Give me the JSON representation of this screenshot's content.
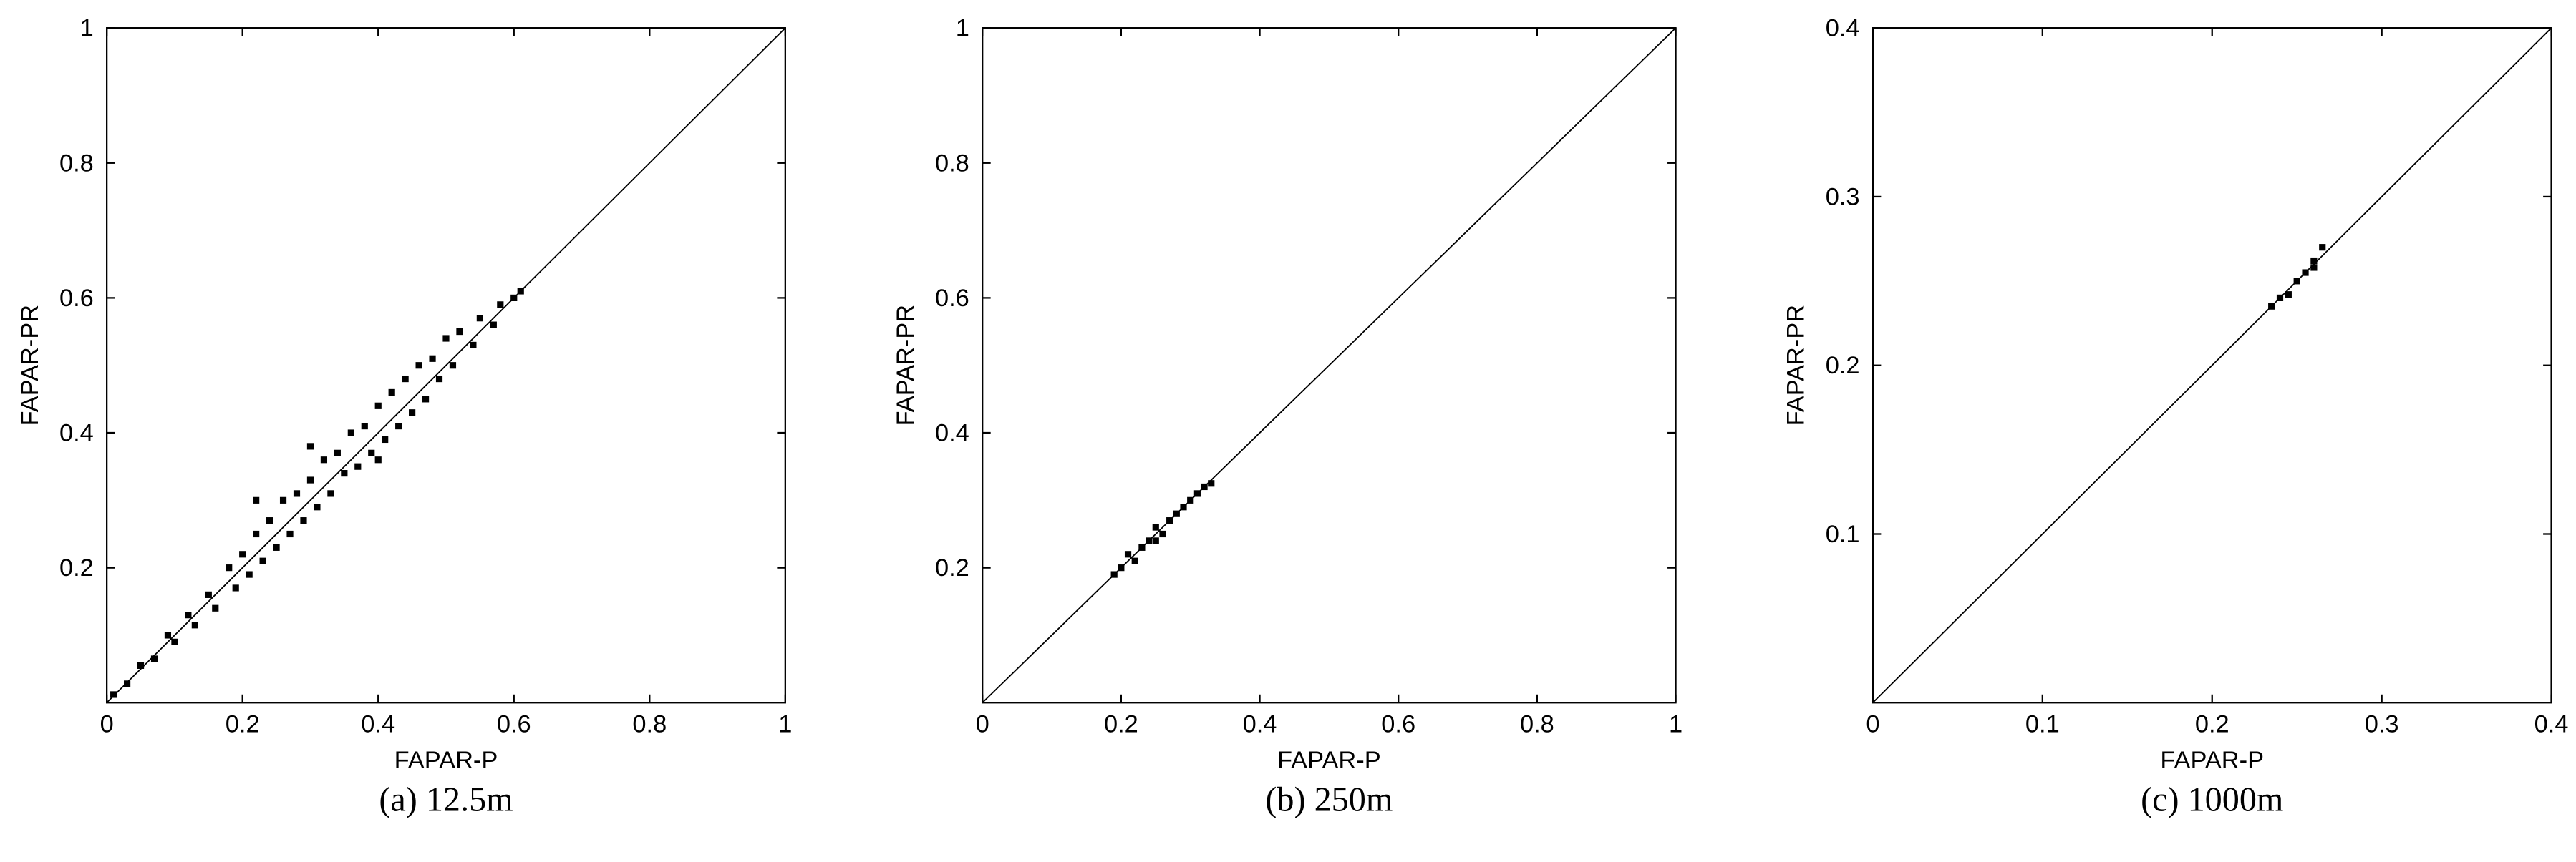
{
  "chart_data": [
    {
      "type": "scatter",
      "title": "(a) 12.5m",
      "x_label": "FAPAR-P",
      "y_label": "FAPAR-PR",
      "color": "#000000",
      "xlim": [
        0,
        1
      ],
      "ylim": [
        0,
        1
      ],
      "xticks": [
        0,
        0.2,
        0.4,
        0.6,
        0.8,
        1
      ],
      "yticks": [
        0.2,
        0.4,
        0.6,
        0.8,
        1
      ],
      "x": [
        0.01,
        0.03,
        0.05,
        0.07,
        0.09,
        0.1,
        0.12,
        0.13,
        0.15,
        0.16,
        0.18,
        0.19,
        0.2,
        0.21,
        0.22,
        0.23,
        0.24,
        0.25,
        0.26,
        0.27,
        0.28,
        0.29,
        0.3,
        0.31,
        0.32,
        0.33,
        0.34,
        0.35,
        0.36,
        0.37,
        0.38,
        0.39,
        0.4,
        0.41,
        0.42,
        0.43,
        0.44,
        0.45,
        0.46,
        0.47,
        0.48,
        0.49,
        0.5,
        0.51,
        0.52,
        0.54,
        0.55,
        0.57,
        0.58,
        0.6,
        0.61,
        0.3,
        0.22,
        0.4
      ],
      "values": [
        0.012,
        0.028,
        0.055,
        0.065,
        0.1,
        0.09,
        0.13,
        0.115,
        0.16,
        0.14,
        0.2,
        0.17,
        0.22,
        0.19,
        0.25,
        0.21,
        0.27,
        0.23,
        0.3,
        0.25,
        0.31,
        0.27,
        0.33,
        0.29,
        0.36,
        0.31,
        0.37,
        0.34,
        0.4,
        0.35,
        0.41,
        0.37,
        0.44,
        0.39,
        0.46,
        0.41,
        0.48,
        0.43,
        0.5,
        0.45,
        0.51,
        0.48,
        0.54,
        0.5,
        0.55,
        0.53,
        0.57,
        0.56,
        0.59,
        0.6,
        0.61,
        0.38,
        0.3,
        0.36
      ]
    },
    {
      "type": "scatter",
      "title": "(b) 250m",
      "x_label": "FAPAR-P",
      "y_label": "FAPAR-PR",
      "color": "#000000",
      "xlim": [
        0,
        1
      ],
      "ylim": [
        0,
        1
      ],
      "xticks": [
        0,
        0.2,
        0.4,
        0.6,
        0.8,
        1
      ],
      "yticks": [
        0.2,
        0.4,
        0.6,
        0.8,
        1
      ],
      "x": [
        0.19,
        0.2,
        0.21,
        0.22,
        0.23,
        0.24,
        0.25,
        0.25,
        0.26,
        0.27,
        0.28,
        0.29,
        0.3,
        0.31,
        0.32,
        0.33
      ],
      "values": [
        0.19,
        0.2,
        0.22,
        0.21,
        0.23,
        0.24,
        0.24,
        0.26,
        0.25,
        0.27,
        0.28,
        0.29,
        0.3,
        0.31,
        0.32,
        0.325
      ]
    },
    {
      "type": "scatter",
      "title": "(c) 1000m",
      "x_label": "FAPAR-P",
      "y_label": "FAPAR-PR",
      "color": "#000000",
      "xlim": [
        0,
        0.4
      ],
      "ylim": [
        0,
        0.4
      ],
      "xticks": [
        0,
        0.1,
        0.2,
        0.3,
        0.4
      ],
      "yticks": [
        0.1,
        0.2,
        0.3,
        0.4
      ],
      "x": [
        0.235,
        0.24,
        0.245,
        0.25,
        0.255,
        0.26,
        0.26,
        0.265
      ],
      "values": [
        0.235,
        0.24,
        0.242,
        0.25,
        0.255,
        0.258,
        0.262,
        0.27
      ]
    }
  ]
}
